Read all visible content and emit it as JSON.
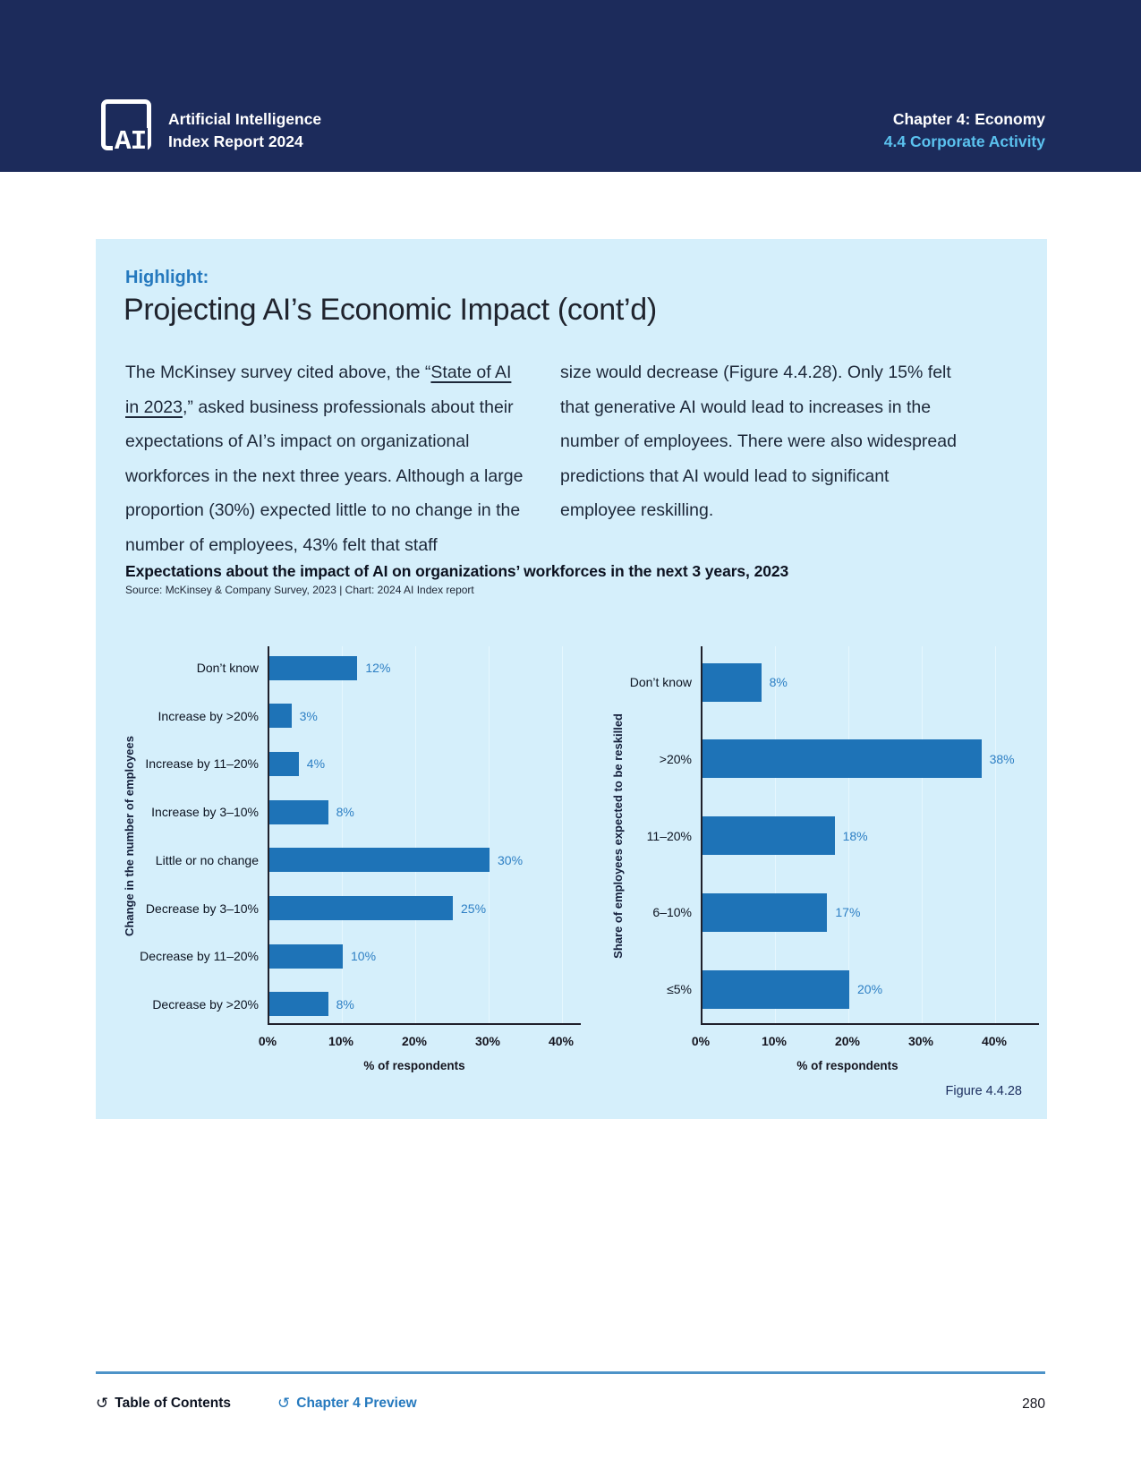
{
  "header": {
    "logo_text": "AI",
    "brand_line1": "Artificial Intelligence",
    "brand_line2": "Index Report 2024",
    "chapter": "Chapter 4: Economy",
    "section": "4.4 Corporate Activity"
  },
  "highlight": {
    "label": "Highlight:",
    "title": "Projecting AI’s Economic Impact (cont’d)",
    "body_left": {
      "pre": "The McKinsey survey cited above, the “",
      "link": "State of AI in 2023",
      "post": ",” asked business professionals about their expectations of AI’s impact on organizational workforces in the next three years. Although a large proportion (30%) expected little to no change in the number of employees, 43% felt that staff"
    },
    "body_right": "size would decrease (Figure 4.4.28). Only 15% felt that generative AI would lead to increases in the number of employees. There were also widespread predictions that AI would lead to significant employee reskilling.",
    "figure_caption": "Figure 4.4.28"
  },
  "chart_data": {
    "title": "Expectations about the impact of AI on organizations’ workforces in the next 3 years, 2023",
    "source": "Source: McKinsey & Company Survey, 2023 | Chart: 2024 AI Index report",
    "charts": [
      {
        "type": "bar",
        "orientation": "horizontal",
        "ylabel": "Change in the number of employees",
        "xlabel": "% of respondents",
        "categories": [
          "Don’t know",
          "Increase by >20%",
          "Increase by 11–20%",
          "Increase by 3–10%",
          "Little or no change",
          "Decrease by 3–10%",
          "Decrease by 11–20%",
          "Decrease by >20%"
        ],
        "values": [
          12,
          3,
          4,
          8,
          30,
          25,
          10,
          8
        ],
        "value_labels": [
          "12%",
          "3%",
          "4%",
          "8%",
          "30%",
          "25%",
          "10%",
          "8%"
        ],
        "x_ticks": [
          "0%",
          "10%",
          "20%",
          "30%",
          "40%"
        ],
        "xlim": [
          0,
          40
        ],
        "grid": true,
        "legend": "none"
      },
      {
        "type": "bar",
        "orientation": "horizontal",
        "ylabel": "Share of employees expected to be reskilled",
        "xlabel": "% of respondents",
        "categories": [
          "Don’t know",
          ">20%",
          "11–20%",
          "6–10%",
          "≤5%"
        ],
        "values": [
          8,
          38,
          18,
          17,
          20
        ],
        "value_labels": [
          "8%",
          "38%",
          "18%",
          "17%",
          "20%"
        ],
        "x_ticks": [
          "0%",
          "10%",
          "20%",
          "30%",
          "40%"
        ],
        "xlim": [
          0,
          40
        ],
        "grid": true,
        "legend": "none"
      }
    ]
  },
  "footer": {
    "toc_label": "Table of Contents",
    "preview_label": "Chapter 4 Preview",
    "page_number": "280",
    "undo_icon": "↺"
  },
  "colors": {
    "header_bg": "#1c2b5b",
    "panel_bg": "#d5effb",
    "accent_blue": "#2579be",
    "bar_blue": "#1e73b7",
    "value_label_blue": "#2d7fc4",
    "subtitle_light_blue": "#5bc2ef",
    "footer_rule_blue": "#4d93c8"
  }
}
